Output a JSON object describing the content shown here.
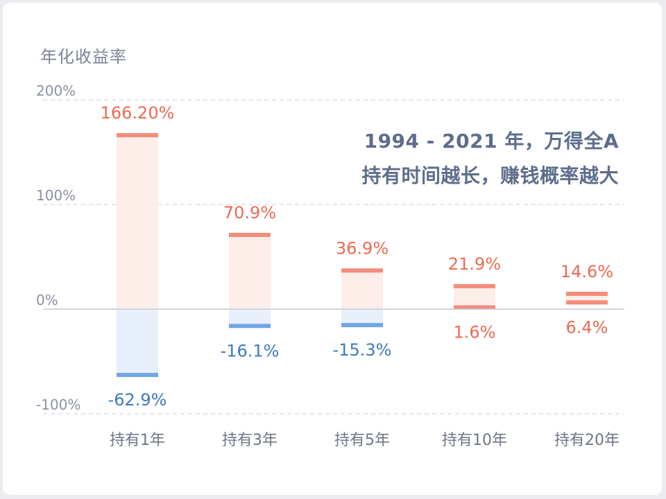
{
  "chart_data": {
    "type": "bar",
    "ylabel": "年化收益率",
    "ylim": [
      -100,
      200
    ],
    "yticks": [
      {
        "value": 200,
        "label": "200%"
      },
      {
        "value": 100,
        "label": "100%"
      },
      {
        "value": 0,
        "label": "0%"
      },
      {
        "value": -100,
        "label": "-100%"
      }
    ],
    "grid": true,
    "annotation_lines": [
      "1994 - 2021 年，万得全A",
      "持有时间越长，赚钱概率越大"
    ],
    "categories": [
      "持有1年",
      "持有3年",
      "持有5年",
      "持有10年",
      "持有20年"
    ],
    "max_values": [
      166.2,
      70.9,
      36.9,
      21.9,
      14.6
    ],
    "min_values": [
      -62.9,
      -16.1,
      -15.3,
      1.6,
      6.4
    ],
    "max_labels": [
      "166.20%",
      "70.9%",
      "36.9%",
      "21.9%",
      "14.6%"
    ],
    "min_labels": [
      "-62.9%",
      "-16.1%",
      "-15.3%",
      "1.6%",
      "6.4%"
    ],
    "colors": {
      "positive": "#f58c7b",
      "positive_fill": "#fdeeea",
      "negative": "#6ea7e6",
      "negative_fill": "#e7effa",
      "positive_text": "#ec6a52",
      "negative_text": "#3f78c2",
      "grid": "#dcdde3",
      "axis": "#c6c8d2",
      "tick_text": "#8b91a0",
      "category_text": "#6f7587"
    }
  }
}
